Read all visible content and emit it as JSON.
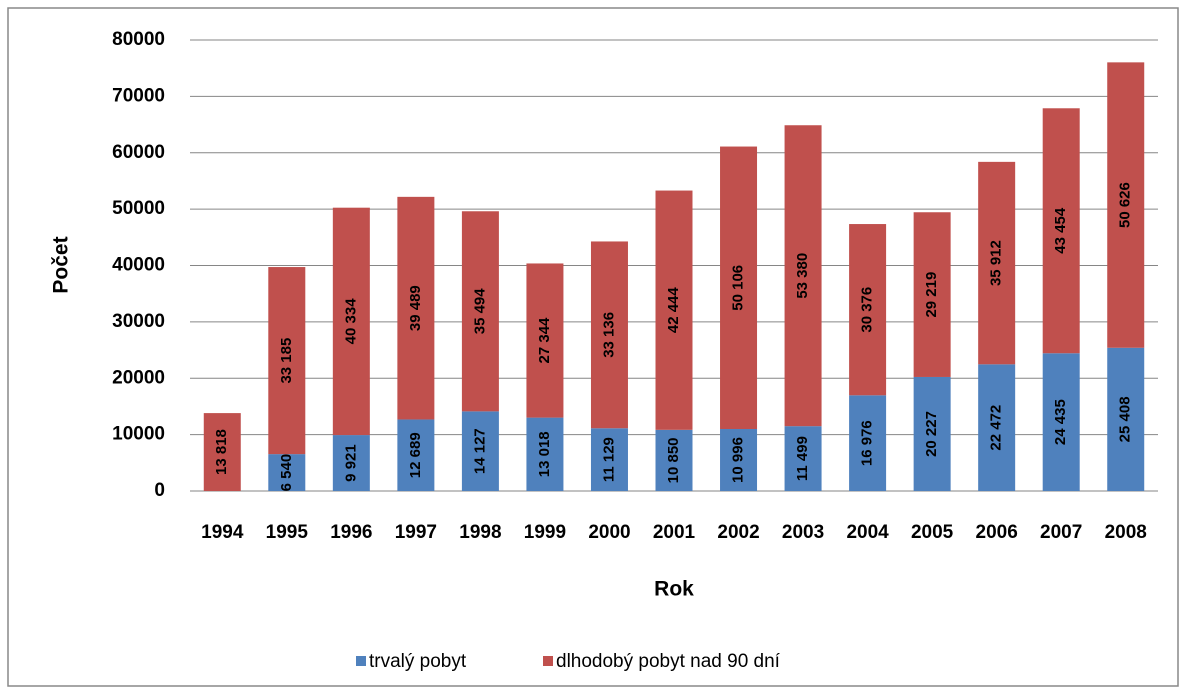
{
  "chart_data": {
    "type": "bar",
    "stacked": true,
    "x_label": "Rok",
    "y_label": "Počet",
    "categories": [
      "1994",
      "1995",
      "1996",
      "1997",
      "1998",
      "1999",
      "2000",
      "2001",
      "2002",
      "2003",
      "2004",
      "2005",
      "2006",
      "2007",
      "2008"
    ],
    "series": [
      {
        "name": "trvalý pobyt",
        "color": "#4f81bd",
        "values": [
          null,
          6540,
          9921,
          12689,
          14127,
          13018,
          11129,
          10850,
          10996,
          11499,
          16976,
          20227,
          22472,
          24435,
          25408
        ],
        "value_labels": [
          null,
          "6 540",
          "9 921",
          "12 689",
          "14 127",
          "13 018",
          "11 129",
          "10 850",
          "10 996",
          "11 499",
          "16 976",
          "20 227",
          "22 472",
          "24 435",
          "25 408"
        ]
      },
      {
        "name": "dlhodobý pobyt nad 90 dní",
        "color": "#c0504d",
        "values": [
          13818,
          33185,
          40334,
          39489,
          35494,
          27344,
          33136,
          42444,
          50106,
          53380,
          30376,
          29219,
          35912,
          43454,
          50626
        ],
        "value_labels": [
          "13 818",
          "33 185",
          "40 334",
          "39 489",
          "35 494",
          "27 344",
          "33 136",
          "42 444",
          "50 106",
          "53 380",
          "30 376",
          "29 219",
          "35 912",
          "43 454",
          "50 626"
        ]
      }
    ],
    "ylim": [
      0,
      80000
    ],
    "yticks": [
      0,
      10000,
      20000,
      30000,
      40000,
      50000,
      60000,
      70000,
      80000
    ],
    "grid": true,
    "legend": "bottom"
  }
}
